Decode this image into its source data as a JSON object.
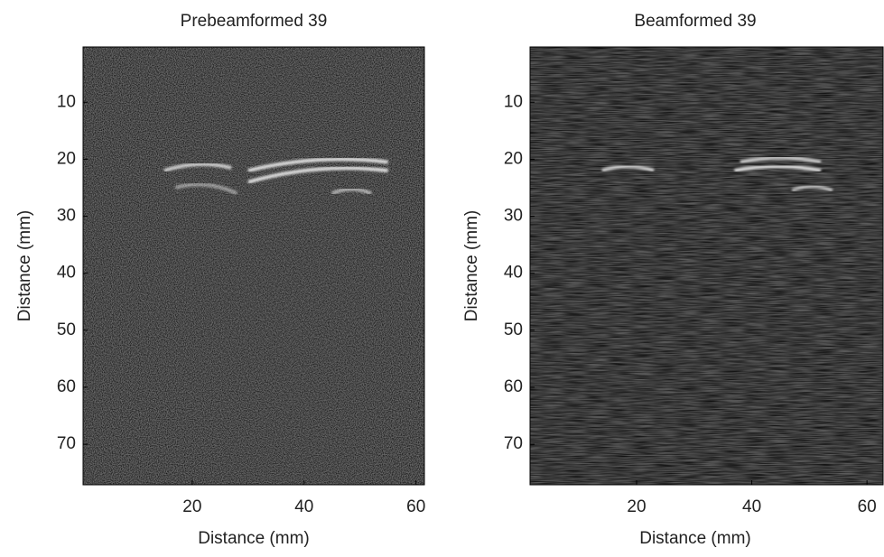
{
  "chart_data": [
    {
      "type": "image",
      "title": "Prebeamformed 39",
      "xlabel": "Distance (mm)",
      "ylabel": "Distance (mm)",
      "xlim": [
        0.5,
        61.5
      ],
      "ylim": [
        0.3,
        77.1
      ],
      "xticks": [
        20,
        40,
        60
      ],
      "yticks": [
        10,
        20,
        30,
        40,
        50,
        60,
        70
      ]
    },
    {
      "type": "image",
      "title": "Beamformed 39",
      "xlabel": "Distance (mm)",
      "ylabel": "Distance (mm)",
      "xlim": [
        1.5,
        62.8
      ],
      "ylim": [
        0.3,
        77.1
      ],
      "xticks": [
        20,
        40,
        60
      ],
      "yticks": [
        10,
        20,
        30,
        40,
        50,
        60,
        70
      ]
    }
  ]
}
